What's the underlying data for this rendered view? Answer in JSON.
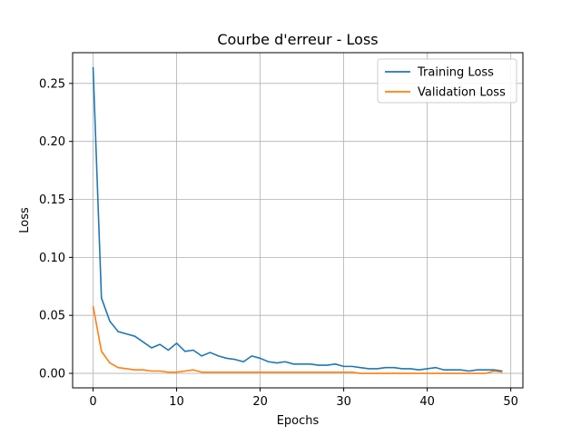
{
  "chart_data": {
    "type": "line",
    "title": "Courbe d'erreur - Loss",
    "xlabel": "Epochs",
    "ylabel": "Loss",
    "xlim": [
      -2.45,
      51.45
    ],
    "ylim": [
      -0.0125,
      0.2765
    ],
    "x_ticks": [
      0,
      10,
      20,
      30,
      40,
      50
    ],
    "y_ticks": [
      0.0,
      0.05,
      0.1,
      0.15,
      0.2,
      0.25
    ],
    "x_tick_labels": [
      "0",
      "10",
      "20",
      "30",
      "40",
      "50"
    ],
    "y_tick_labels": [
      "0.00",
      "0.05",
      "0.10",
      "0.15",
      "0.20",
      "0.25"
    ],
    "grid": true,
    "legend_position": "upper-right",
    "series": [
      {
        "name": "Training Loss",
        "color": "#1f77b4",
        "x": [
          0,
          1,
          2,
          3,
          4,
          5,
          6,
          7,
          8,
          9,
          10,
          11,
          12,
          13,
          14,
          15,
          16,
          17,
          18,
          19,
          20,
          21,
          22,
          23,
          24,
          25,
          26,
          27,
          28,
          29,
          30,
          31,
          32,
          33,
          34,
          35,
          36,
          37,
          38,
          39,
          40,
          41,
          42,
          43,
          44,
          45,
          46,
          47,
          48,
          49
        ],
        "values": [
          0.264,
          0.065,
          0.045,
          0.036,
          0.034,
          0.032,
          0.027,
          0.022,
          0.025,
          0.02,
          0.026,
          0.019,
          0.02,
          0.015,
          0.018,
          0.015,
          0.013,
          0.012,
          0.01,
          0.015,
          0.013,
          0.01,
          0.009,
          0.01,
          0.008,
          0.008,
          0.008,
          0.007,
          0.007,
          0.008,
          0.006,
          0.006,
          0.005,
          0.004,
          0.004,
          0.005,
          0.005,
          0.004,
          0.004,
          0.003,
          0.004,
          0.005,
          0.003,
          0.003,
          0.003,
          0.002,
          0.003,
          0.003,
          0.003,
          0.002
        ]
      },
      {
        "name": "Validation Loss",
        "color": "#ff7f0e",
        "x": [
          0,
          1,
          2,
          3,
          4,
          5,
          6,
          7,
          8,
          9,
          10,
          11,
          12,
          13,
          14,
          15,
          16,
          17,
          18,
          19,
          20,
          21,
          22,
          23,
          24,
          25,
          26,
          27,
          28,
          29,
          30,
          31,
          32,
          33,
          34,
          35,
          36,
          37,
          38,
          39,
          40,
          41,
          42,
          43,
          44,
          45,
          46,
          47,
          48,
          49
        ],
        "values": [
          0.058,
          0.019,
          0.009,
          0.005,
          0.004,
          0.003,
          0.003,
          0.002,
          0.002,
          0.001,
          0.001,
          0.002,
          0.003,
          0.001,
          0.001,
          0.001,
          0.001,
          0.001,
          0.001,
          0.001,
          0.001,
          0.001,
          0.001,
          0.001,
          0.001,
          0.001,
          0.001,
          0.001,
          0.001,
          0.001,
          0.001,
          0.001,
          0.0,
          0.0,
          0.0,
          0.0,
          0.0,
          0.0,
          0.0,
          0.0,
          0.0,
          0.0,
          0.0,
          0.0,
          0.0,
          0.0,
          0.0,
          0.0,
          0.002,
          0.001
        ]
      }
    ]
  }
}
